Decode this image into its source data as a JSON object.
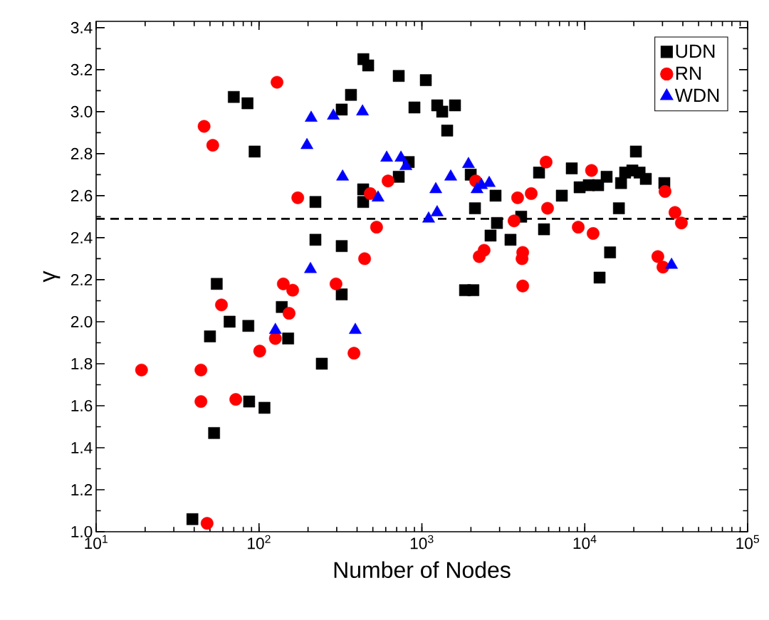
{
  "chart_data": {
    "type": "scatter",
    "xlabel": "Number of Nodes",
    "ylabel": "γ",
    "log": "x",
    "legend": "top right",
    "grid": false,
    "xlim": [
      10,
      100000
    ],
    "ylim": [
      1.0,
      3.43
    ],
    "xticks": [
      {
        "value": 10,
        "label": "10$^{1}$"
      },
      {
        "value": 100,
        "label": "10$^{2}$"
      },
      {
        "value": 1000,
        "label": "10$^{3}$"
      },
      {
        "value": 10000,
        "label": "10$^{4}$"
      },
      {
        "value": 100000,
        "label": "10$^{5}$"
      }
    ],
    "yticks": [
      {
        "value": 1.0,
        "label": "1.0"
      },
      {
        "value": 1.2,
        "label": "1.2"
      },
      {
        "value": 1.4,
        "label": "1.4"
      },
      {
        "value": 1.6,
        "label": "1.6"
      },
      {
        "value": 1.8,
        "label": "1.8"
      },
      {
        "value": 2.0,
        "label": "2.0"
      },
      {
        "value": 2.2,
        "label": "2.2"
      },
      {
        "value": 2.4,
        "label": "2.4"
      },
      {
        "value": 2.6,
        "label": "2.6"
      },
      {
        "value": 2.8,
        "label": "2.8"
      },
      {
        "value": 3.0,
        "label": "3.0"
      },
      {
        "value": 3.2,
        "label": "3.2"
      },
      {
        "value": 3.4,
        "label": "3.4"
      }
    ],
    "ref_lines": [
      {
        "axis": "y",
        "value": 2.49,
        "color": "#000000",
        "line_style": "dashed"
      }
    ],
    "series": [
      {
        "name": "UDN",
        "color": "#000000",
        "marker": "square",
        "x": [
          39,
          50,
          55,
          53,
          66,
          70,
          85,
          86,
          87,
          94,
          108,
          138,
          151,
          222,
          222,
          243,
          322,
          322,
          322,
          367,
          436,
          436,
          437,
          468,
          721,
          721,
          830,
          900,
          1057,
          1242,
          1333,
          1597,
          1430,
          1995,
          2118,
          2833,
          2890,
          2640,
          3500,
          4070,
          5620,
          5240,
          7230,
          8320,
          9300,
          10590,
          12080,
          13620,
          16200,
          16700,
          17700,
          19600,
          20600,
          21700,
          23700,
          30800,
          14300,
          12330,
          1840,
          2070
        ],
        "values": [
          1.06,
          1.93,
          2.18,
          1.47,
          2.0,
          3.07,
          3.04,
          1.98,
          1.62,
          2.81,
          1.59,
          2.07,
          1.92,
          2.57,
          2.39,
          1.8,
          2.36,
          2.13,
          3.01,
          3.08,
          2.63,
          2.57,
          3.25,
          3.22,
          3.17,
          2.69,
          2.76,
          3.02,
          3.15,
          3.03,
          3.0,
          3.03,
          2.91,
          2.7,
          2.54,
          2.6,
          2.47,
          2.41,
          2.39,
          2.5,
          2.44,
          2.71,
          2.6,
          2.73,
          2.64,
          2.65,
          2.65,
          2.69,
          2.54,
          2.66,
          2.71,
          2.72,
          2.81,
          2.71,
          2.68,
          2.66,
          2.33,
          2.21,
          2.15,
          2.15
        ]
      },
      {
        "name": "RN",
        "color": "#ff0000",
        "marker": "circle",
        "x": [
          129,
          46,
          52,
          173,
          620,
          482,
          527,
          445,
          141,
          161,
          297,
          58.8,
          153,
          126,
          101,
          383,
          19,
          44,
          44,
          72,
          48,
          5790,
          11000,
          2140,
          3870,
          4690,
          5910,
          3680,
          31100,
          35800,
          39200,
          9120,
          11250,
          2410,
          2250,
          4160,
          4120,
          4160,
          28100,
          30200
        ],
        "values": [
          3.14,
          2.93,
          2.84,
          2.59,
          2.67,
          2.61,
          2.45,
          2.3,
          2.18,
          2.15,
          2.18,
          2.08,
          2.04,
          1.92,
          1.86,
          1.85,
          1.77,
          1.77,
          1.62,
          1.63,
          1.04,
          2.76,
          2.72,
          2.67,
          2.59,
          2.61,
          2.54,
          2.48,
          2.62,
          2.52,
          2.47,
          2.45,
          2.42,
          2.34,
          2.31,
          2.33,
          2.3,
          2.17,
          2.31,
          2.26
        ]
      },
      {
        "name": "WDN",
        "color": "#0000ff",
        "marker": "triangle",
        "x": [
          209,
          286,
          432,
          197,
          608,
          744,
          798,
          326,
          538,
          207,
          126,
          390,
          1932,
          1503,
          1217,
          1240,
          1100,
          2320,
          2180,
          2590,
          34100
        ],
        "values": [
          2.97,
          2.98,
          3.0,
          2.84,
          2.78,
          2.78,
          2.74,
          2.69,
          2.59,
          2.25,
          1.96,
          1.96,
          2.75,
          2.69,
          2.63,
          2.52,
          2.49,
          2.65,
          2.63,
          2.66,
          2.27
        ]
      }
    ]
  }
}
